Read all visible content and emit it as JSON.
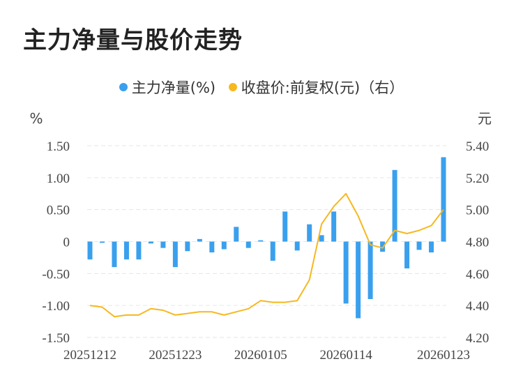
{
  "title": "主力净量与股价走势",
  "legend": {
    "bar_label": "主力净量(%)",
    "line_label": "收盘价:前复权(元)（右）"
  },
  "units": {
    "left": "%",
    "right": "元"
  },
  "colors": {
    "bar": "#3aa0ee",
    "line": "#f6b81f",
    "grid": "#e6e6e6",
    "text": "#444444"
  },
  "chart_data": {
    "type": "bar",
    "title": "主力净量与股价走势",
    "x_tick_labels": [
      "20251212",
      "20251223",
      "20260105",
      "20260114",
      "20260123"
    ],
    "x_tick_indices": [
      0,
      7,
      14,
      21,
      29
    ],
    "left_axis": {
      "unit": "%",
      "ylim": [
        -1.5,
        1.5
      ],
      "ticks": [
        1.5,
        1.0,
        0.5,
        0,
        -0.5,
        -1.0,
        -1.5
      ],
      "tick_labels": [
        "1.50",
        "1.00",
        "0.50",
        "0",
        "-0.50",
        "-1.00",
        "-1.50"
      ]
    },
    "right_axis": {
      "unit": "元",
      "ylim": [
        4.2,
        5.4
      ],
      "ticks": [
        5.4,
        5.2,
        5.0,
        4.8,
        4.6,
        4.4,
        4.2
      ],
      "tick_labels": [
        "5.40",
        "5.20",
        "5.00",
        "4.80",
        "4.60",
        "4.40",
        "4.20"
      ]
    },
    "grid": true,
    "legend_position": "top-center",
    "series": [
      {
        "name": "主力净量(%)",
        "type": "bar",
        "axis": "left",
        "values": [
          -0.28,
          -0.02,
          -0.4,
          -0.28,
          -0.28,
          -0.03,
          -0.1,
          -0.4,
          -0.15,
          0.04,
          -0.17,
          -0.12,
          0.23,
          -0.1,
          0.02,
          -0.3,
          0.47,
          -0.14,
          0.27,
          0.1,
          0.47,
          -0.97,
          -1.2,
          -0.9,
          -0.16,
          1.12,
          -0.42,
          -0.13,
          -0.17,
          1.32
        ]
      },
      {
        "name": "收盘价:前复权(元)（右）",
        "type": "line",
        "axis": "right",
        "values": [
          4.4,
          4.39,
          4.33,
          4.34,
          4.34,
          4.38,
          4.37,
          4.34,
          4.35,
          4.36,
          4.36,
          4.34,
          4.36,
          4.38,
          4.43,
          4.42,
          4.42,
          4.43,
          4.56,
          4.91,
          5.02,
          5.1,
          4.96,
          4.78,
          4.76,
          4.87,
          4.85,
          4.87,
          4.9,
          5.0
        ]
      }
    ]
  }
}
